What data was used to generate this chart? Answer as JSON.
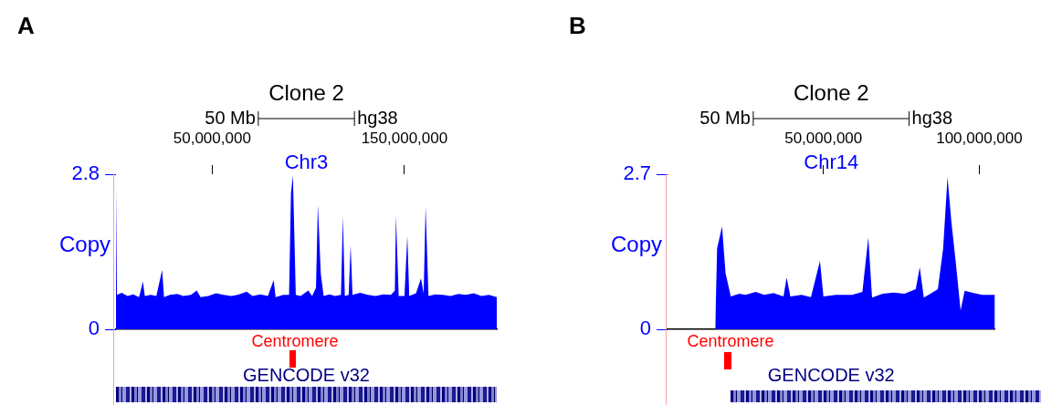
{
  "chart_data": [
    {
      "type": "area",
      "title": "Clone 2",
      "subtitle": "Chr3",
      "ylabel": "Copy",
      "annotations": [
        "A",
        "50 Mb",
        "hg38",
        "Centromere",
        "GENCODE v32"
      ],
      "series": [
        {
          "color": "#0000ff",
          "x": [
            0,
            500000,
            3000000,
            6000000,
            9000000,
            12000000,
            14000000,
            15000000,
            18000000,
            21000000,
            24000000,
            25000000,
            28000000,
            32000000,
            35000000,
            39000000,
            42000000,
            44000000,
            48000000,
            52000000,
            56000000,
            60000000,
            64000000,
            68000000,
            71000000,
            75000000,
            79000000,
            82000000,
            83000000,
            87000000,
            90000000,
            91000000,
            92000000,
            93500000,
            96000000,
            100000000,
            102000000,
            104000000,
            105000000,
            106500000,
            108000000,
            111000000,
            114000000,
            117000000,
            118000000,
            119000000,
            121000000,
            122000000,
            123000000,
            127000000,
            131000000,
            135000000,
            139000000,
            143000000,
            145000000,
            145600000,
            147000000,
            150000000,
            151500000,
            152500000,
            156000000,
            158600000,
            160000000,
            161000000,
            162500000,
            166000000,
            170000000,
            174000000,
            178000000,
            182000000,
            186000000,
            190000000,
            194000000,
            198000000
          ],
          "values": [
            2.57,
            0.62,
            0.66,
            0.6,
            0.63,
            0.58,
            0.86,
            0.6,
            0.62,
            0.6,
            1.07,
            0.58,
            0.62,
            0.64,
            0.6,
            0.62,
            0.7,
            0.58,
            0.6,
            0.65,
            0.62,
            0.6,
            0.63,
            0.68,
            0.6,
            0.63,
            0.6,
            0.89,
            0.58,
            0.62,
            0.62,
            2.46,
            2.78,
            0.62,
            0.6,
            0.7,
            0.6,
            0.75,
            2.25,
            1.0,
            0.6,
            0.63,
            0.6,
            0.62,
            2.04,
            0.6,
            0.62,
            1.52,
            0.62,
            0.66,
            0.62,
            0.6,
            0.63,
            0.62,
            0.7,
            2.06,
            0.6,
            0.6,
            1.69,
            0.6,
            0.65,
            0.92,
            0.65,
            2.22,
            0.6,
            0.63,
            0.62,
            0.6,
            0.64,
            0.62,
            0.65,
            0.6,
            0.62,
            0.58
          ]
        }
      ],
      "xlim": [
        0,
        198000000
      ],
      "xticks": [
        {
          "value": 50000000,
          "label": "50,000,000"
        },
        {
          "value": 150000000,
          "label": "150,000,000"
        }
      ],
      "ylim": [
        0,
        2.8
      ],
      "yticks": [
        0,
        2.8
      ],
      "grid": false,
      "legend": false
    },
    {
      "type": "area",
      "title": "Clone 2",
      "subtitle": "Chr14",
      "ylabel": "Copy",
      "annotations": [
        "B",
        "50 Mb",
        "hg38",
        "Centromere",
        "GENCODE v32"
      ],
      "series": [
        {
          "color": "#0000ff",
          "x": [
            15300000,
            15900000,
            17500000,
            18600000,
            20300000,
            23000000,
            25000000,
            28300000,
            31000000,
            34000000,
            37200000,
            38200000,
            39400000,
            43000000,
            46000000,
            48900000,
            50000000,
            54000000,
            59200000,
            62500000,
            64400000,
            65600000,
            69000000,
            72500000,
            76000000,
            79600000,
            80900000,
            82200000,
            86700000,
            88400000,
            89800000,
            91100000,
            92400000,
            94000000,
            95300000,
            98200000,
            101000000,
            105000000
          ],
          "values": [
            0,
            1.41,
            1.79,
            0.98,
            0.57,
            0.62,
            0.6,
            0.65,
            0.6,
            0.63,
            0.57,
            0.9,
            0.57,
            0.6,
            0.56,
            1.19,
            0.57,
            0.6,
            0.6,
            0.65,
            1.6,
            0.55,
            0.62,
            0.64,
            0.62,
            0.7,
            1.08,
            0.55,
            0.7,
            1.41,
            2.65,
            1.84,
            1.19,
            0.33,
            0.67,
            0.63,
            0.6,
            0.6
          ]
        }
      ],
      "xlim": [
        0,
        105000000
      ],
      "xticks": [
        {
          "value": 50000000,
          "label": "50,000,000"
        },
        {
          "value": 100000000,
          "label": "100,000,000"
        }
      ],
      "ylim": [
        0,
        2.7
      ],
      "yticks": [
        0,
        2.7
      ],
      "grid": false,
      "legend": false
    }
  ]
}
